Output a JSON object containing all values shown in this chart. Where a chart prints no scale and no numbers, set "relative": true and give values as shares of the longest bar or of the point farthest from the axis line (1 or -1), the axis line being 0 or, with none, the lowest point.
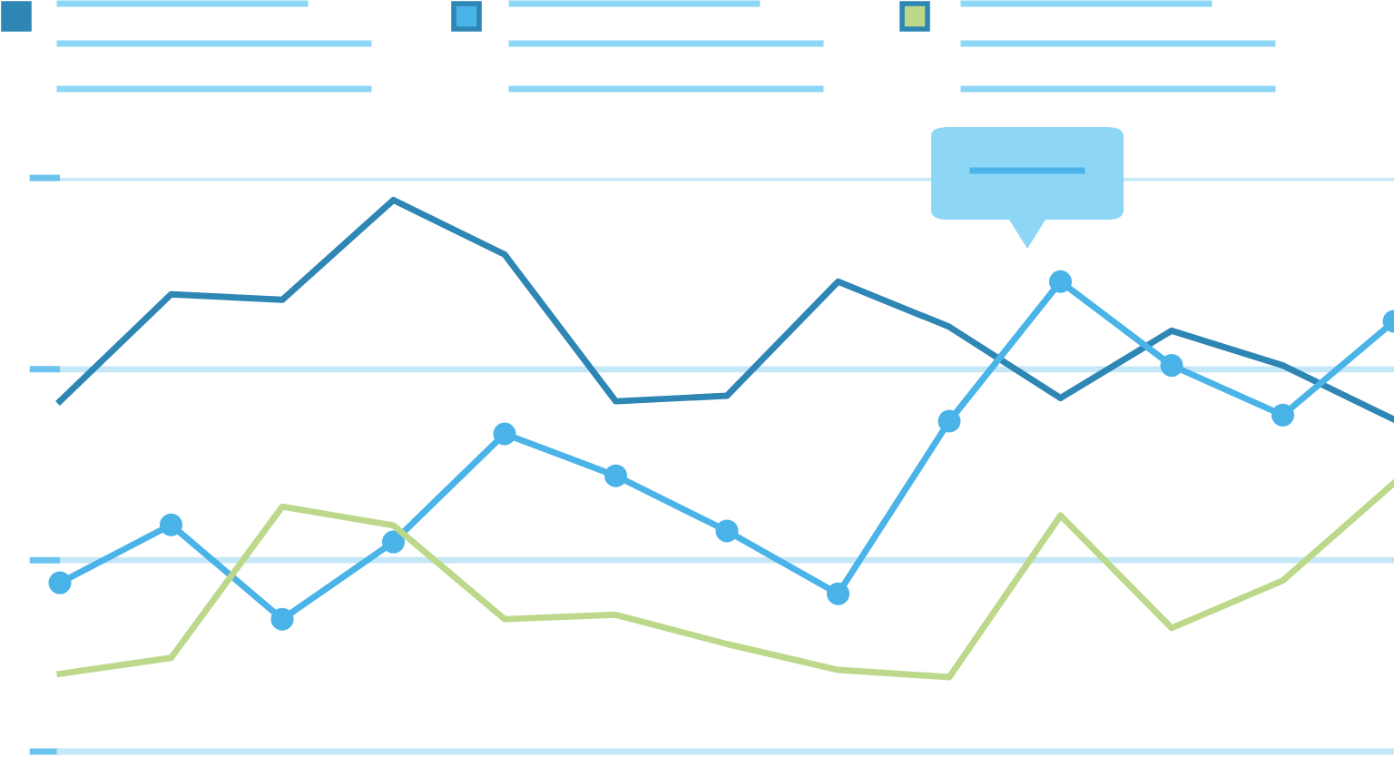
{
  "chart_data": {
    "type": "line",
    "relative": true,
    "ref_lines": [
      {
        "axis": "y",
        "value": 0.347,
        "color": "#c5e8f8"
      },
      {
        "axis": "y",
        "value": 0.693,
        "color": "#c5e8f8"
      },
      {
        "axis": "y",
        "value": 1.04,
        "color": "#c5e8f8"
      }
    ],
    "line_style": "solid",
    "categories": [
      null,
      null,
      null,
      null,
      null,
      null,
      null,
      null,
      null,
      null,
      null,
      null,
      null
    ],
    "series": [
      {
        "color": "#2e86b4",
        "marker": "none",
        "values": [
          0.635,
          0.829,
          0.819,
          1.0,
          0.901,
          0.635,
          0.645,
          0.852,
          0.77,
          0.641,
          0.763,
          0.7,
          0.602
        ]
      },
      {
        "color": "#4ab3e8",
        "marker": "circle",
        "values": [
          0.306,
          0.411,
          0.24,
          0.38,
          0.576,
          0.5,
          0.4,
          0.286,
          0.599,
          0.852,
          0.7,
          0.61,
          0.78
        ]
      },
      {
        "color": "#bcd88a",
        "marker": "none",
        "values": [
          0.141,
          0.17,
          0.444,
          0.41,
          0.24,
          0.248,
          0.195,
          0.148,
          0.135,
          0.428,
          0.224,
          0.31,
          0.487
        ]
      }
    ]
  }
}
